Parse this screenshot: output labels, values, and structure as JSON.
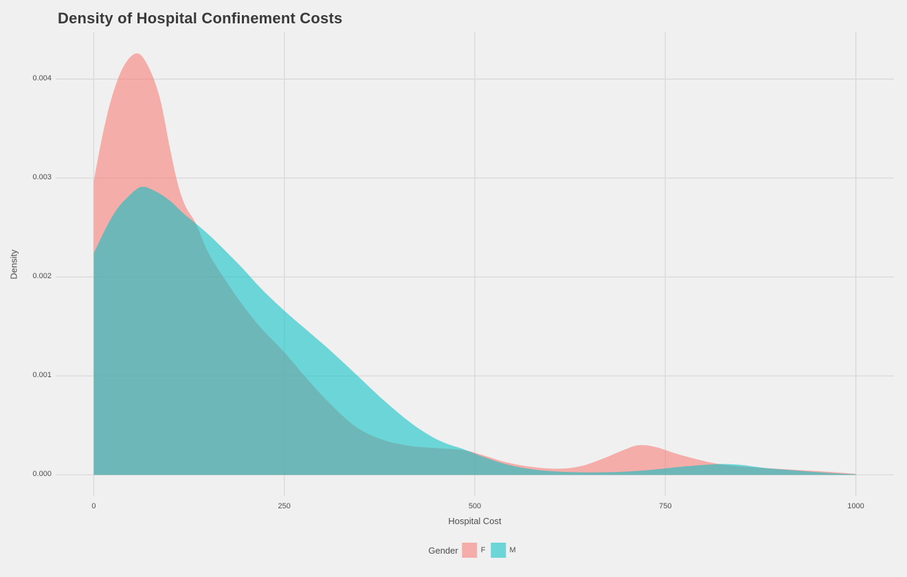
{
  "title": "Density of Hospital Confinement Costs",
  "x_axis": {
    "label": "Hospital Cost",
    "tick_labels": [
      "0",
      "250",
      "500",
      "750",
      "1000"
    ],
    "tick_values": [
      0,
      250,
      500,
      750,
      1000
    ]
  },
  "y_axis": {
    "label": "Density",
    "tick_labels": [
      "0.000",
      "0.001",
      "0.002",
      "0.003",
      "0.004"
    ],
    "tick_values": [
      0,
      0.001,
      0.002,
      0.003,
      0.004
    ]
  },
  "legend": {
    "title": "Gender",
    "items": [
      {
        "label": "F",
        "color": "#F8766D"
      },
      {
        "label": "M",
        "color": "#00BFC4"
      }
    ]
  },
  "style": {
    "background": "#F0F0F0",
    "gridline": "#DADADA",
    "tick_text_color": "#4D4D4D",
    "title_color": "#3A3A3A",
    "fill_alpha": 0.55
  },
  "chart_data": {
    "type": "area",
    "subtype": "density",
    "title": "Density of Hospital Confinement Costs",
    "xlabel": "Hospital Cost",
    "ylabel": "Density",
    "legend_title": "Gender",
    "legend_position": "bottom",
    "grid": "major-only",
    "x_domain": [
      -50,
      1050
    ],
    "y_domain": [
      -0.000213,
      0.004473
    ],
    "xlim_data": [
      0,
      1000
    ],
    "series": [
      {
        "name": "F",
        "fill": "#F8766D",
        "alpha": 0.55,
        "peak": {
          "x": 57,
          "density": 0.00426
        },
        "points": [
          [
            0,
            0.00297
          ],
          [
            12,
            0.00345
          ],
          [
            25,
            0.00385
          ],
          [
            40,
            0.00414
          ],
          [
            57,
            0.00426
          ],
          [
            72,
            0.00412
          ],
          [
            87,
            0.0038
          ],
          [
            100,
            0.0033
          ],
          [
            110,
            0.00295
          ],
          [
            120,
            0.00272
          ],
          [
            134,
            0.00254
          ],
          [
            150,
            0.00225
          ],
          [
            170,
            0.002
          ],
          [
            195,
            0.00172
          ],
          [
            220,
            0.00148
          ],
          [
            250,
            0.00124
          ],
          [
            280,
            0.00097
          ],
          [
            310,
            0.00072
          ],
          [
            345,
            0.00048
          ],
          [
            381,
            0.00035
          ],
          [
            417,
            0.00029
          ],
          [
            450,
            0.00027
          ],
          [
            485,
            0.00025
          ],
          [
            510,
            0.0002
          ],
          [
            540,
            0.00013
          ],
          [
            575,
            8e-05
          ],
          [
            610,
            6.2e-05
          ],
          [
            640,
            9e-05
          ],
          [
            670,
            0.00017
          ],
          [
            695,
            0.00025
          ],
          [
            715,
            0.0003
          ],
          [
            738,
            0.00028
          ],
          [
            762,
            0.00022
          ],
          [
            790,
            0.00016
          ],
          [
            820,
            0.00011
          ],
          [
            850,
            8.5e-05
          ],
          [
            880,
            7e-05
          ],
          [
            912,
            5.5e-05
          ],
          [
            945,
            4e-05
          ],
          [
            975,
            2.5e-05
          ],
          [
            1000,
            1e-05
          ]
        ]
      },
      {
        "name": "M",
        "fill": "#00BFC4",
        "alpha": 0.55,
        "peak": {
          "x": 60,
          "density": 0.00291
        },
        "points": [
          [
            0,
            0.00224
          ],
          [
            15,
            0.00248
          ],
          [
            30,
            0.00268
          ],
          [
            45,
            0.00281
          ],
          [
            62,
            0.00291
          ],
          [
            80,
            0.00287
          ],
          [
            100,
            0.00277
          ],
          [
            118,
            0.00264
          ],
          [
            134,
            0.00254
          ],
          [
            152,
            0.00242
          ],
          [
            172,
            0.00227
          ],
          [
            195,
            0.00209
          ],
          [
            220,
            0.00188
          ],
          [
            250,
            0.00166
          ],
          [
            280,
            0.00146
          ],
          [
            310,
            0.00126
          ],
          [
            345,
            0.00101
          ],
          [
            381,
            0.00075
          ],
          [
            417,
            0.00052
          ],
          [
            445,
            0.00038
          ],
          [
            465,
            0.00031
          ],
          [
            485,
            0.00026
          ],
          [
            512,
            0.00018
          ],
          [
            540,
            0.00011
          ],
          [
            572,
            6e-05
          ],
          [
            605,
            3.5e-05
          ],
          [
            645,
            2.5e-05
          ],
          [
            690,
            3e-05
          ],
          [
            730,
            5e-05
          ],
          [
            768,
            8e-05
          ],
          [
            800,
            0.0001
          ],
          [
            825,
            0.00011
          ],
          [
            850,
            0.0001
          ],
          [
            880,
            7e-05
          ],
          [
            912,
            5e-05
          ],
          [
            945,
            3e-05
          ],
          [
            975,
            1.5e-05
          ],
          [
            1000,
            5e-06
          ]
        ]
      }
    ]
  }
}
